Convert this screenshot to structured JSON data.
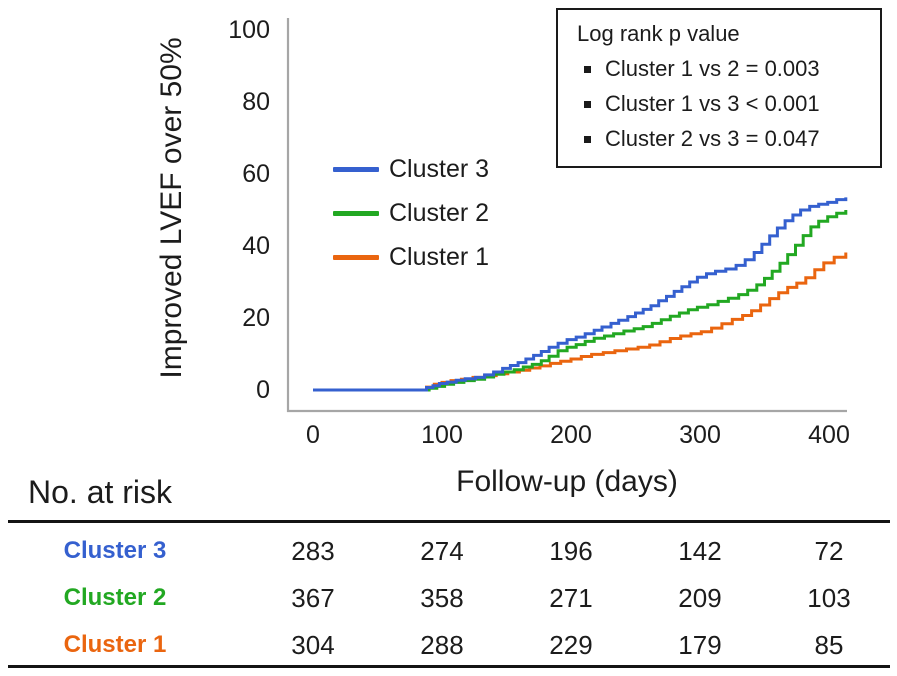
{
  "figure": {
    "y_axis_title": "Improved LVEF over 50%",
    "x_axis_title": "Follow-up (days)"
  },
  "pvalue_box": {
    "title": "Log rank p value",
    "items": [
      "Cluster 1 vs 2 = 0.003",
      "Cluster 1 vs 3 < 0.001",
      "Cluster 2 vs 3 = 0.047"
    ]
  },
  "legend": [
    {
      "label": "Cluster 3",
      "color": "#3560cf"
    },
    {
      "label": "Cluster 2",
      "color": "#22a822"
    },
    {
      "label": "Cluster 1",
      "color": "#ea650f"
    }
  ],
  "chart_data": {
    "type": "line",
    "subtype": "step-cumulative-incidence",
    "title": "",
    "xlabel": "Follow-up (days)",
    "ylabel": "Improved LVEF over 50%",
    "xlim": [
      0,
      420
    ],
    "ylim": [
      0,
      100
    ],
    "xticks": [
      0,
      100,
      200,
      300,
      400
    ],
    "yticks": [
      0,
      20,
      40,
      60,
      80,
      100
    ],
    "xtick_labels": [
      "0",
      "100",
      "200",
      "300",
      "400"
    ],
    "ytick_labels": [
      "100",
      "80",
      "60",
      "40",
      "20",
      "0"
    ],
    "grid": false,
    "legend_position": "inside-left-middle",
    "axis_color": "#a6a6a6",
    "series": [
      {
        "name": "Cluster 3",
        "color": "#3560cf",
        "points": [
          [
            0,
            0
          ],
          [
            88,
            0.7
          ],
          [
            93,
            1.2
          ],
          [
            98,
            1.8
          ],
          [
            104,
            2.2
          ],
          [
            111,
            2.7
          ],
          [
            118,
            3.1
          ],
          [
            126,
            3.5
          ],
          [
            133,
            4.2
          ],
          [
            140,
            5
          ],
          [
            147,
            6
          ],
          [
            153,
            6.8
          ],
          [
            159,
            7.6
          ],
          [
            165,
            8.6
          ],
          [
            171,
            9.6
          ],
          [
            177,
            10.7
          ],
          [
            183,
            11.9
          ],
          [
            190,
            13
          ],
          [
            197,
            14
          ],
          [
            204,
            14.7
          ],
          [
            211,
            15.6
          ],
          [
            218,
            16.6
          ],
          [
            224,
            17.5
          ],
          [
            231,
            18.5
          ],
          [
            237,
            19.4
          ],
          [
            244,
            20.4
          ],
          [
            250,
            21.4
          ],
          [
            256,
            22.4
          ],
          [
            262,
            23.4
          ],
          [
            268,
            24.8
          ],
          [
            274,
            26
          ],
          [
            280,
            27.4
          ],
          [
            286,
            28.7
          ],
          [
            292,
            30
          ],
          [
            298,
            31.3
          ],
          [
            305,
            32.3
          ],
          [
            312,
            33
          ],
          [
            320,
            33.6
          ],
          [
            328,
            34.6
          ],
          [
            335,
            36.2
          ],
          [
            342,
            38.2
          ],
          [
            348,
            40.5
          ],
          [
            354,
            42.8
          ],
          [
            360,
            45
          ],
          [
            366,
            47
          ],
          [
            372,
            48.6
          ],
          [
            378,
            50
          ],
          [
            385,
            51
          ],
          [
            392,
            51.6
          ],
          [
            399,
            52.1
          ],
          [
            406,
            52.9
          ],
          [
            413,
            53.5
          ]
        ]
      },
      {
        "name": "Cluster 2",
        "color": "#22a822",
        "points": [
          [
            0,
            0
          ],
          [
            90,
            0.5
          ],
          [
            96,
            1
          ],
          [
            102,
            1.6
          ],
          [
            109,
            2.1
          ],
          [
            117,
            2.6
          ],
          [
            125,
            3
          ],
          [
            133,
            3.6
          ],
          [
            140,
            4.4
          ],
          [
            148,
            5
          ],
          [
            156,
            5.6
          ],
          [
            163,
            6.4
          ],
          [
            170,
            7.1
          ],
          [
            177,
            8.1
          ],
          [
            183,
            9.4
          ],
          [
            190,
            10.9
          ],
          [
            197,
            11.9
          ],
          [
            204,
            12.6
          ],
          [
            211,
            13.5
          ],
          [
            218,
            14.4
          ],
          [
            226,
            15
          ],
          [
            233,
            15.6
          ],
          [
            241,
            16.4
          ],
          [
            249,
            17
          ],
          [
            256,
            17.6
          ],
          [
            263,
            18.5
          ],
          [
            270,
            19.5
          ],
          [
            277,
            20.5
          ],
          [
            284,
            21.4
          ],
          [
            291,
            22.3
          ],
          [
            298,
            23
          ],
          [
            306,
            23.7
          ],
          [
            314,
            24.6
          ],
          [
            322,
            25.5
          ],
          [
            330,
            26.5
          ],
          [
            337,
            27.7
          ],
          [
            344,
            29.2
          ],
          [
            350,
            31
          ],
          [
            356,
            33
          ],
          [
            362,
            35.2
          ],
          [
            368,
            37.6
          ],
          [
            374,
            40.2
          ],
          [
            380,
            42.9
          ],
          [
            386,
            45.3
          ],
          [
            392,
            46.9
          ],
          [
            399,
            48.1
          ],
          [
            406,
            49.1
          ],
          [
            413,
            50
          ]
        ]
      },
      {
        "name": "Cluster 1",
        "color": "#ea650f",
        "points": [
          [
            0,
            0
          ],
          [
            88,
            0.8
          ],
          [
            94,
            1.6
          ],
          [
            100,
            2.1
          ],
          [
            107,
            2.6
          ],
          [
            115,
            3
          ],
          [
            124,
            3.5
          ],
          [
            133,
            4
          ],
          [
            142,
            4.5
          ],
          [
            151,
            5
          ],
          [
            160,
            5.5
          ],
          [
            168,
            6.1
          ],
          [
            176,
            6.7
          ],
          [
            184,
            7.4
          ],
          [
            192,
            8
          ],
          [
            200,
            8.6
          ],
          [
            208,
            9.3
          ],
          [
            216,
            9.9
          ],
          [
            225,
            10.4
          ],
          [
            234,
            10.9
          ],
          [
            243,
            11.4
          ],
          [
            252,
            11.9
          ],
          [
            261,
            12.5
          ],
          [
            269,
            13.4
          ],
          [
            277,
            14.3
          ],
          [
            285,
            15
          ],
          [
            293,
            15.6
          ],
          [
            301,
            16.2
          ],
          [
            309,
            17.2
          ],
          [
            317,
            18.4
          ],
          [
            325,
            19.6
          ],
          [
            333,
            20.7
          ],
          [
            340,
            22
          ],
          [
            347,
            23.6
          ],
          [
            354,
            25.4
          ],
          [
            361,
            27
          ],
          [
            368,
            28.5
          ],
          [
            375,
            29.7
          ],
          [
            382,
            31.2
          ],
          [
            389,
            33.4
          ],
          [
            396,
            35.3
          ],
          [
            404,
            36.9
          ],
          [
            413,
            38.2
          ]
        ]
      }
    ]
  },
  "risk_table": {
    "label": "No. at risk",
    "aligned_to_days": [
      0,
      100,
      200,
      300,
      400
    ],
    "rows": [
      {
        "label": "Cluster 3",
        "color": "#3560cf",
        "values": [
          "283",
          "274",
          "196",
          "142",
          "72"
        ]
      },
      {
        "label": "Cluster 2",
        "color": "#22a822",
        "values": [
          "367",
          "358",
          "271",
          "209",
          "103"
        ]
      },
      {
        "label": "Cluster 1",
        "color": "#ea650f",
        "values": [
          "304",
          "288",
          "229",
          "179",
          "85"
        ]
      }
    ]
  }
}
